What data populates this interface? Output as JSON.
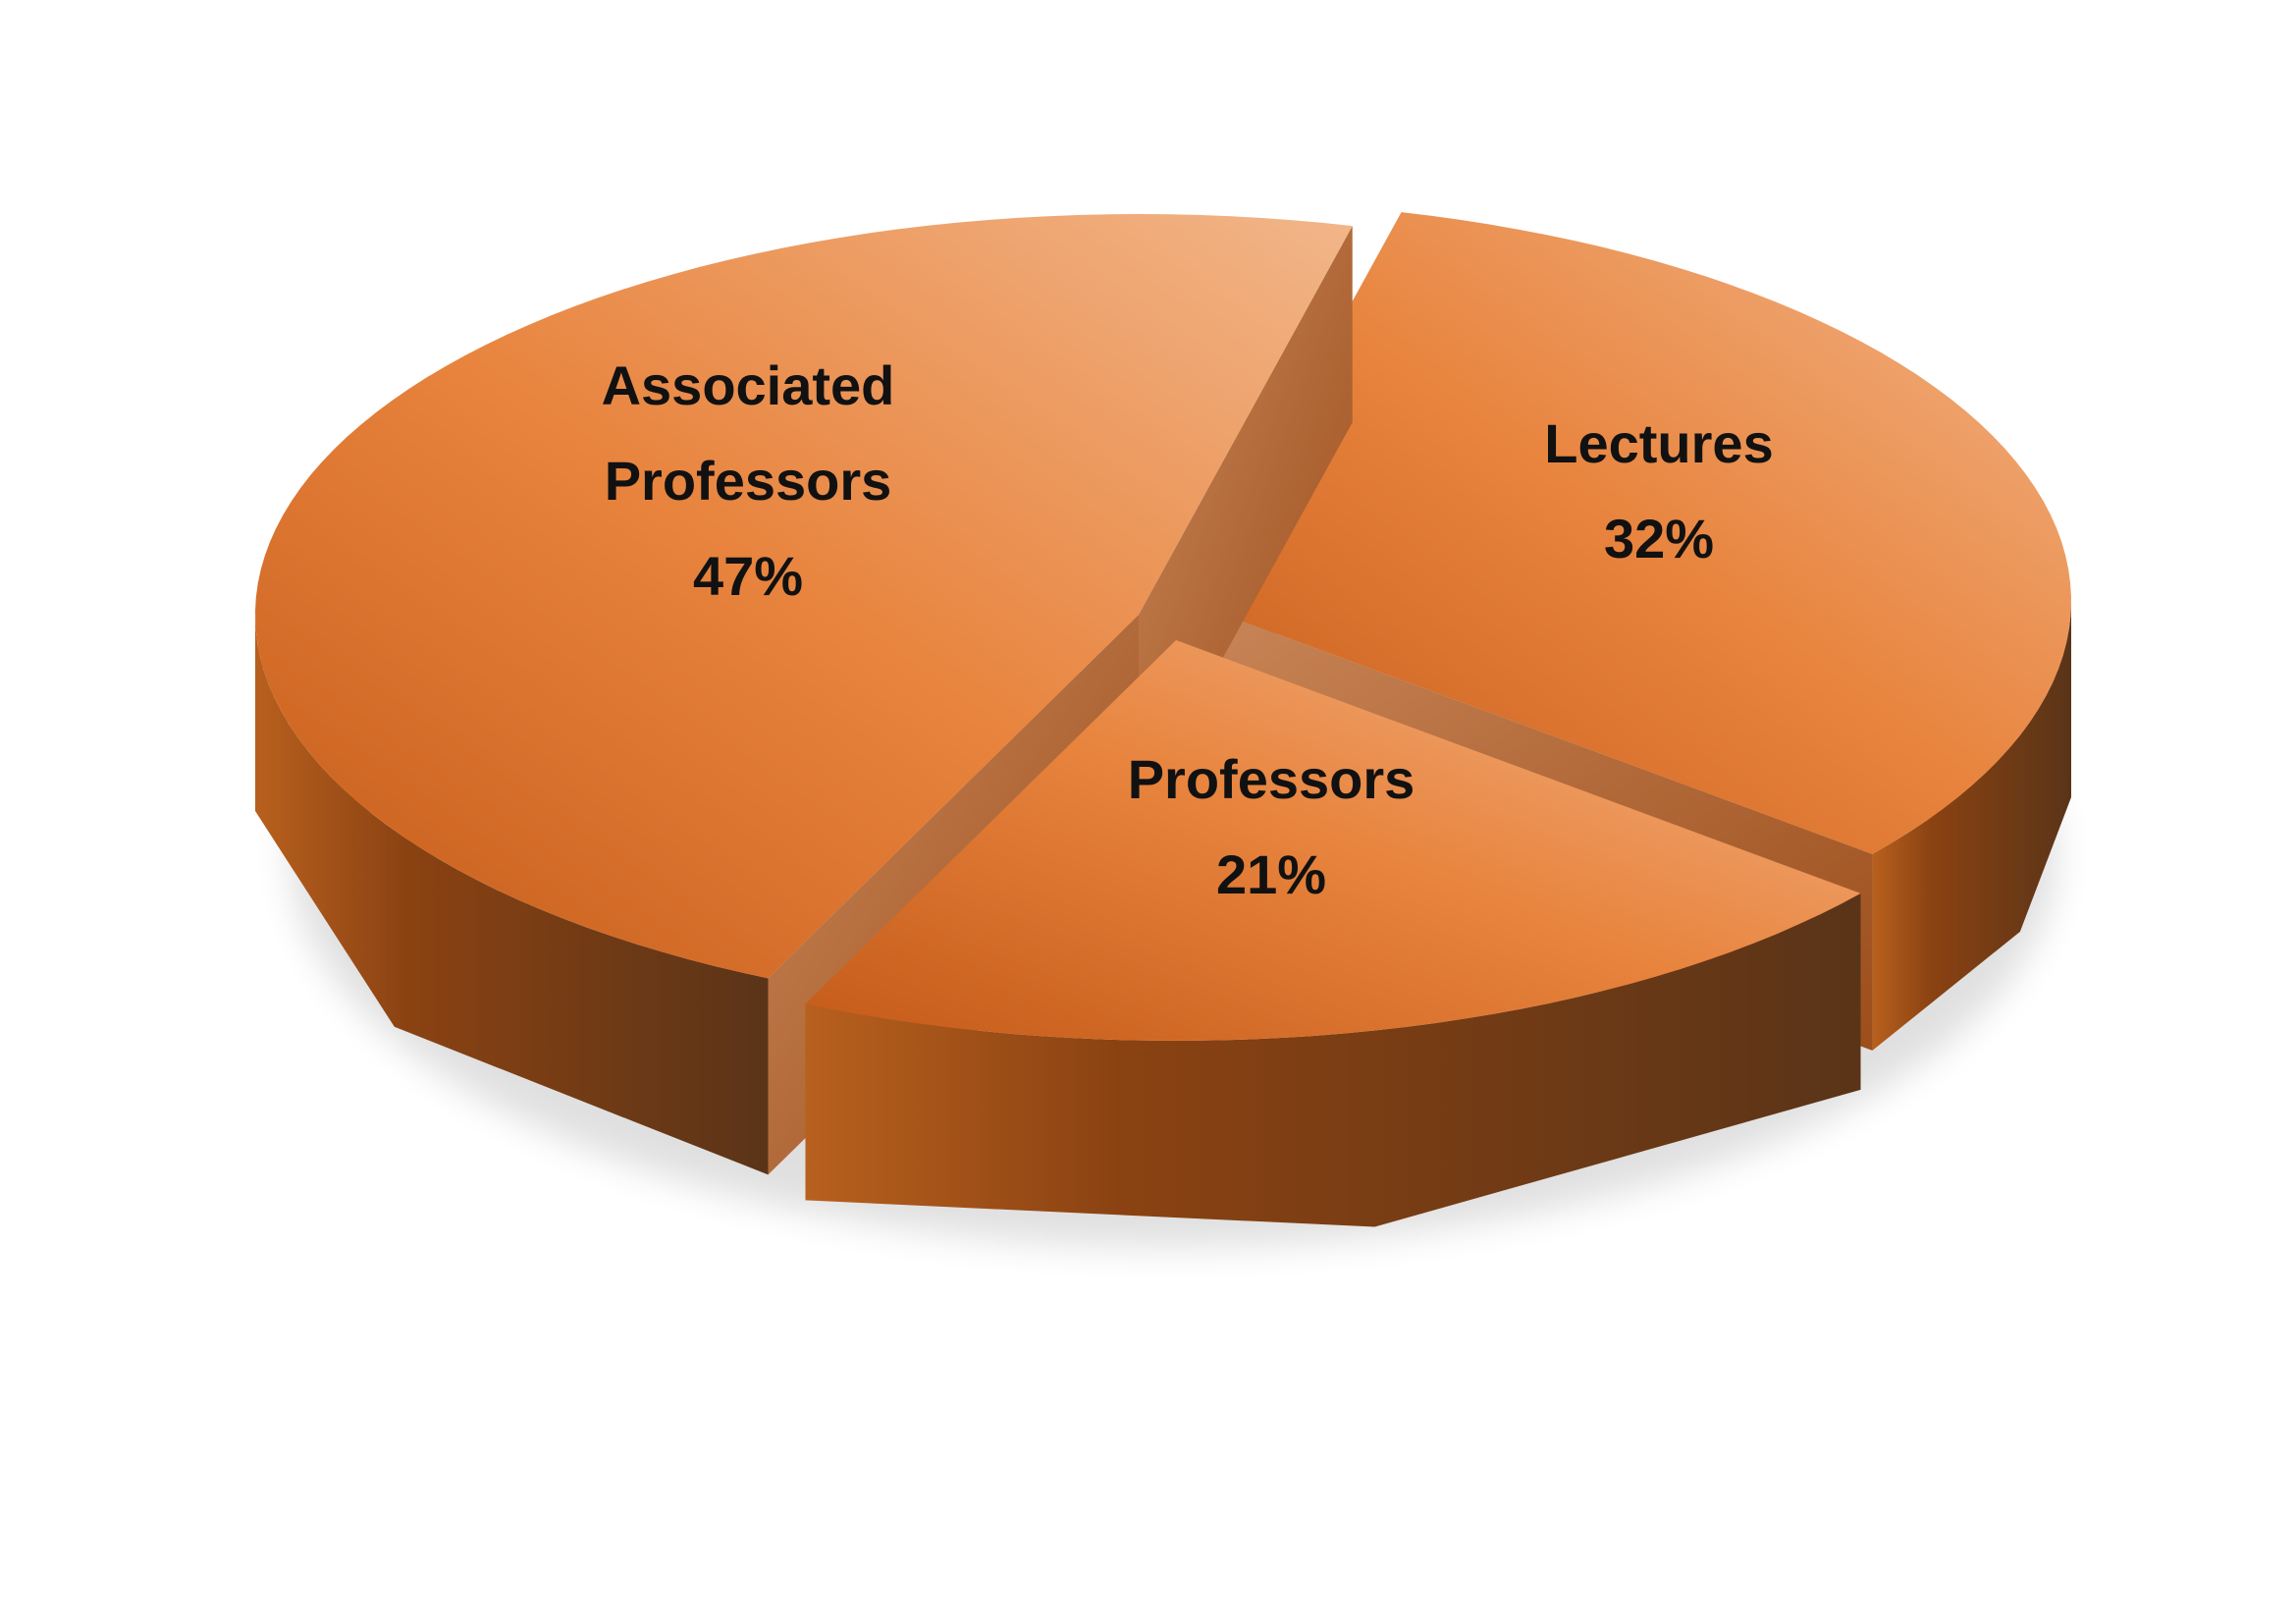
{
  "chart_data": {
    "type": "pie",
    "style": "3d-exploded",
    "title": "",
    "categories": [
      "Lectures",
      "Professors",
      "Associated Professors"
    ],
    "values": [
      32,
      21,
      47
    ],
    "unit": "%",
    "labels": [
      {
        "lines": [
          "Lectures",
          "32%"
        ]
      },
      {
        "lines": [
          "Professors",
          "21%"
        ]
      },
      {
        "lines": [
          "Associated",
          "Professors",
          "47%"
        ]
      }
    ],
    "colors": {
      "top": "#E8843E",
      "top_light": "#F0AA78",
      "side": "#8A4212",
      "side_dark": "#5A3418"
    },
    "legend": "none"
  }
}
